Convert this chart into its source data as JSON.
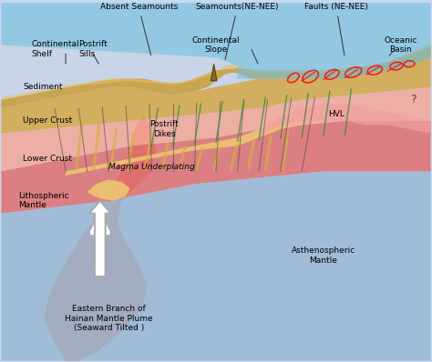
{
  "title": "",
  "bg_color": "#ffffff",
  "labels": {
    "absent_seamounts": "Absent Seamounts",
    "seamounts": "Seamounts(NE-NEE)",
    "faults": "Faults (NE-NEE)",
    "continental_shelf": "Continental\nShelf",
    "postrift_sills": "Postrift\nSills",
    "continental_slope": "Continental\nSlope",
    "oceanic_basin": "Oceanic\nBasin",
    "sediment": "Sediment",
    "upper_crust": "Upper Crust",
    "lower_crust": "Lower Crust",
    "postrift_dikes": "Postrift\nDikes",
    "magma_underplating": "Magma Underplating",
    "lithospheric_mantle": "Lithospheric\nMantle",
    "asthenospheric_mantle": "Asthenospheric\nMantle",
    "eastern_branch": "Eastern Branch of\nHainan Mantle Plume\n(Seaward Tilted )",
    "hvl": "HVL",
    "question": "?"
  },
  "colors": {
    "sediment_top": "#d4b96a",
    "sediment_fill": "#e8c96e",
    "upper_crust": "#f4b8a0",
    "lower_crust": "#e87878",
    "lithospheric_mantle": "#a8c4e0",
    "asthenospheric_mantle": "#c8d8f0",
    "magma_plume": "#e07050",
    "magma_underplating": "#f0d080",
    "ocean_water": "#88ccee",
    "hvl_fill": "#f0b0b0",
    "green_dike": "#2a7a2a",
    "yellow_dike": "#f0d060",
    "red_fault": "#cc2020",
    "dark_line": "#404040",
    "white_arrow": "#ffffff",
    "arrow_outline": "#404040"
  }
}
